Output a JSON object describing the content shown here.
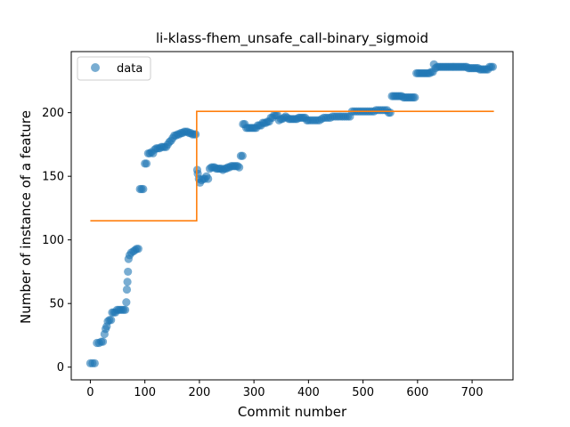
{
  "chart_data": {
    "type": "scatter",
    "title": "li-klass-fhem_unsafe_call-binary_sigmoid",
    "xlabel": "Commit number",
    "ylabel": "Number of instance of a feature",
    "xlim": [
      -35,
      775
    ],
    "ylim": [
      -10,
      248
    ],
    "xticks": [
      0,
      100,
      200,
      300,
      400,
      500,
      600,
      700
    ],
    "yticks": [
      0,
      50,
      100,
      150,
      200
    ],
    "legend": {
      "placement": "top-left",
      "entries": [
        "data"
      ]
    },
    "grid": false,
    "colors": {
      "data": "#1f77b4",
      "fit": "#ff7f0e"
    },
    "series": [
      {
        "name": "data",
        "points": [
          [
            0,
            3
          ],
          [
            4,
            3
          ],
          [
            8,
            3
          ],
          [
            12,
            19
          ],
          [
            16,
            19
          ],
          [
            20,
            20
          ],
          [
            23,
            20
          ],
          [
            26,
            26
          ],
          [
            28,
            30
          ],
          [
            30,
            32
          ],
          [
            32,
            36
          ],
          [
            35,
            37
          ],
          [
            38,
            37
          ],
          [
            40,
            43
          ],
          [
            43,
            43
          ],
          [
            46,
            43
          ],
          [
            49,
            45
          ],
          [
            52,
            45
          ],
          [
            55,
            45
          ],
          [
            58,
            45
          ],
          [
            61,
            45
          ],
          [
            64,
            45
          ],
          [
            66,
            51
          ],
          [
            67,
            61
          ],
          [
            68,
            67
          ],
          [
            69,
            75
          ],
          [
            70,
            85
          ],
          [
            72,
            88
          ],
          [
            75,
            90
          ],
          [
            79,
            91
          ],
          [
            82,
            92
          ],
          [
            85,
            93
          ],
          [
            88,
            93
          ],
          [
            91,
            140
          ],
          [
            94,
            140
          ],
          [
            97,
            140
          ],
          [
            100,
            160
          ],
          [
            103,
            160
          ],
          [
            106,
            168
          ],
          [
            109,
            168
          ],
          [
            112,
            169
          ],
          [
            115,
            168
          ],
          [
            118,
            171
          ],
          [
            121,
            172
          ],
          [
            124,
            172
          ],
          [
            127,
            172
          ],
          [
            130,
            173
          ],
          [
            133,
            173
          ],
          [
            136,
            173
          ],
          [
            139,
            173
          ],
          [
            142,
            175
          ],
          [
            145,
            177
          ],
          [
            148,
            178
          ],
          [
            151,
            180
          ],
          [
            154,
            182
          ],
          [
            157,
            182
          ],
          [
            160,
            183
          ],
          [
            163,
            183
          ],
          [
            166,
            184
          ],
          [
            169,
            184
          ],
          [
            172,
            185
          ],
          [
            175,
            185
          ],
          [
            178,
            185
          ],
          [
            181,
            184
          ],
          [
            184,
            184
          ],
          [
            187,
            183
          ],
          [
            190,
            183
          ],
          [
            193,
            183
          ],
          [
            196,
            155
          ],
          [
            197,
            152
          ],
          [
            199,
            148
          ],
          [
            201,
            145
          ],
          [
            204,
            147
          ],
          [
            207,
            148
          ],
          [
            210,
            148
          ],
          [
            213,
            150
          ],
          [
            216,
            148
          ],
          [
            219,
            156
          ],
          [
            222,
            157
          ],
          [
            225,
            157
          ],
          [
            228,
            157
          ],
          [
            231,
            156
          ],
          [
            234,
            156
          ],
          [
            237,
            156
          ],
          [
            240,
            156
          ],
          [
            243,
            155
          ],
          [
            246,
            156
          ],
          [
            249,
            156
          ],
          [
            252,
            157
          ],
          [
            255,
            157
          ],
          [
            258,
            158
          ],
          [
            261,
            158
          ],
          [
            264,
            158
          ],
          [
            267,
            158
          ],
          [
            270,
            158
          ],
          [
            273,
            157
          ],
          [
            276,
            166
          ],
          [
            279,
            166
          ],
          [
            280,
            191
          ],
          [
            283,
            191
          ],
          [
            286,
            188
          ],
          [
            289,
            188
          ],
          [
            292,
            188
          ],
          [
            295,
            188
          ],
          [
            298,
            188
          ],
          [
            301,
            188
          ],
          [
            304,
            188
          ],
          [
            307,
            190
          ],
          [
            310,
            190
          ],
          [
            313,
            190
          ],
          [
            316,
            192
          ],
          [
            319,
            192
          ],
          [
            322,
            192
          ],
          [
            325,
            193
          ],
          [
            328,
            193
          ],
          [
            331,
            196
          ],
          [
            334,
            196
          ],
          [
            337,
            198
          ],
          [
            340,
            198
          ],
          [
            343,
            198
          ],
          [
            346,
            194
          ],
          [
            349,
            195
          ],
          [
            352,
            195
          ],
          [
            355,
            196
          ],
          [
            358,
            197
          ],
          [
            361,
            196
          ],
          [
            364,
            195
          ],
          [
            367,
            195
          ],
          [
            370,
            195
          ],
          [
            373,
            195
          ],
          [
            376,
            195
          ],
          [
            379,
            195
          ],
          [
            382,
            196
          ],
          [
            385,
            196
          ],
          [
            388,
            196
          ],
          [
            391,
            196
          ],
          [
            394,
            196
          ],
          [
            397,
            194
          ],
          [
            400,
            194
          ],
          [
            404,
            194
          ],
          [
            408,
            194
          ],
          [
            412,
            194
          ],
          [
            416,
            194
          ],
          [
            420,
            194
          ],
          [
            424,
            195
          ],
          [
            428,
            196
          ],
          [
            432,
            196
          ],
          [
            436,
            196
          ],
          [
            440,
            196
          ],
          [
            444,
            197
          ],
          [
            448,
            197
          ],
          [
            452,
            197
          ],
          [
            456,
            197
          ],
          [
            460,
            197
          ],
          [
            464,
            197
          ],
          [
            468,
            197
          ],
          [
            472,
            197
          ],
          [
            476,
            197
          ],
          [
            480,
            201
          ],
          [
            484,
            201
          ],
          [
            488,
            201
          ],
          [
            492,
            201
          ],
          [
            496,
            201
          ],
          [
            500,
            201
          ],
          [
            504,
            201
          ],
          [
            508,
            201
          ],
          [
            512,
            201
          ],
          [
            516,
            201
          ],
          [
            520,
            201
          ],
          [
            524,
            202
          ],
          [
            528,
            202
          ],
          [
            532,
            202
          ],
          [
            536,
            202
          ],
          [
            540,
            202
          ],
          [
            544,
            202
          ],
          [
            547,
            200
          ],
          [
            550,
            200
          ],
          [
            553,
            213
          ],
          [
            556,
            213
          ],
          [
            559,
            213
          ],
          [
            562,
            213
          ],
          [
            565,
            213
          ],
          [
            568,
            213
          ],
          [
            571,
            213
          ],
          [
            574,
            212
          ],
          [
            577,
            212
          ],
          [
            580,
            212
          ],
          [
            583,
            212
          ],
          [
            586,
            212
          ],
          [
            589,
            212
          ],
          [
            592,
            212
          ],
          [
            595,
            212
          ],
          [
            598,
            231
          ],
          [
            601,
            231
          ],
          [
            604,
            231
          ],
          [
            607,
            231
          ],
          [
            610,
            231
          ],
          [
            613,
            231
          ],
          [
            616,
            231
          ],
          [
            619,
            231
          ],
          [
            622,
            231
          ],
          [
            625,
            232
          ],
          [
            628,
            232
          ],
          [
            630,
            238
          ],
          [
            633,
            235
          ],
          [
            636,
            236
          ],
          [
            639,
            236
          ],
          [
            642,
            236
          ],
          [
            645,
            236
          ],
          [
            648,
            236
          ],
          [
            651,
            236
          ],
          [
            654,
            236
          ],
          [
            657,
            236
          ],
          [
            660,
            236
          ],
          [
            663,
            236
          ],
          [
            666,
            236
          ],
          [
            669,
            236
          ],
          [
            672,
            236
          ],
          [
            675,
            236
          ],
          [
            678,
            236
          ],
          [
            681,
            236
          ],
          [
            684,
            236
          ],
          [
            687,
            236
          ],
          [
            690,
            236
          ],
          [
            693,
            235
          ],
          [
            696,
            235
          ],
          [
            699,
            235
          ],
          [
            702,
            235
          ],
          [
            705,
            235
          ],
          [
            708,
            235
          ],
          [
            711,
            235
          ],
          [
            714,
            234
          ],
          [
            717,
            234
          ],
          [
            720,
            234
          ],
          [
            723,
            234
          ],
          [
            726,
            234
          ],
          [
            729,
            234
          ],
          [
            732,
            236
          ],
          [
            735,
            236
          ],
          [
            738,
            236
          ]
        ]
      },
      {
        "points": [
          [
            0,
            115
          ],
          [
            195,
            115
          ],
          [
            195,
            201
          ],
          [
            740,
            201
          ]
        ]
      }
    ]
  }
}
